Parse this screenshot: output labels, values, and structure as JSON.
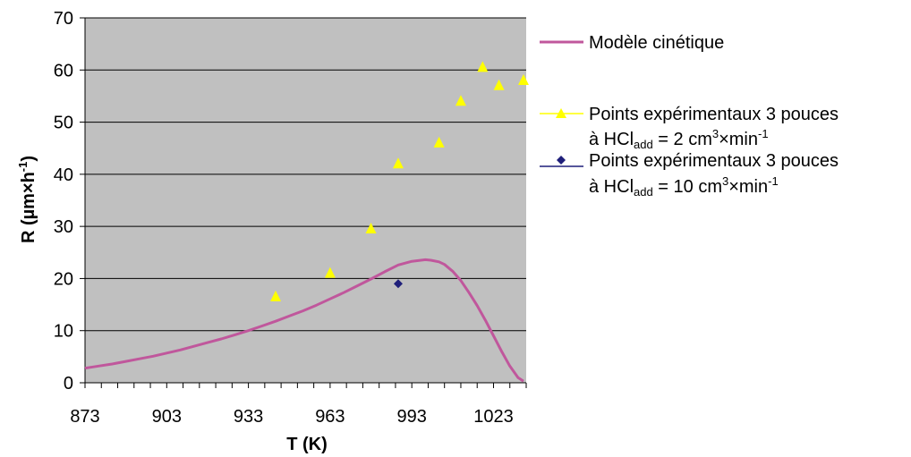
{
  "chart_data": {
    "type": "scatter",
    "xlabel": "T (K)",
    "ylabel": {
      "main": "R (µm×h",
      "sup": "-1",
      "end": ")"
    },
    "xlim": [
      873,
      1035
    ],
    "ylim": [
      0,
      70
    ],
    "xticks": [
      873,
      903,
      933,
      963,
      993,
      1023
    ],
    "yticks": [
      0,
      10,
      20,
      30,
      40,
      50,
      60,
      70
    ],
    "x_minor_step": 6,
    "grid": "horizontal",
    "plot_background": "#c0c0c0",
    "legend_position": "right",
    "series": [
      {
        "name": "Modèle cinétique",
        "kind": "line",
        "color": "#c0579c",
        "x": [
          873,
          878,
          883,
          888,
          893,
          898,
          903,
          908,
          913,
          918,
          923,
          928,
          933,
          938,
          943,
          948,
          953,
          958,
          963,
          968,
          973,
          978,
          983,
          988,
          993,
          998,
          1000,
          1003,
          1005,
          1008,
          1011,
          1014,
          1017,
          1020,
          1023,
          1026,
          1029,
          1032,
          1034
        ],
        "y": [
          2.8,
          3.2,
          3.6,
          4.1,
          4.6,
          5.1,
          5.7,
          6.3,
          7.0,
          7.7,
          8.4,
          9.2,
          10.0,
          10.9,
          11.8,
          12.8,
          13.8,
          14.9,
          16.1,
          17.3,
          18.6,
          19.9,
          21.3,
          22.6,
          23.3,
          23.6,
          23.5,
          23.2,
          22.7,
          21.4,
          19.6,
          17.3,
          14.8,
          12.0,
          9.0,
          6.0,
          3.2,
          1.0,
          0.3
        ]
      },
      {
        "name": {
          "line1": "Points expérimentaux 3 pouces",
          "prefix": "à HCl",
          "sub": "add",
          "middle": " = 2 cm",
          "sup1": "3",
          "times": "×min",
          "sup2": "-1"
        },
        "kind": "marker",
        "marker": "triangle",
        "color": "#ffff00",
        "x": [
          943,
          963,
          978,
          988,
          1003,
          1011,
          1019,
          1025,
          1034
        ],
        "y": [
          16.5,
          21,
          29.5,
          42,
          46,
          54,
          60.5,
          57,
          58
        ]
      },
      {
        "name": {
          "line1": "Points expérimentaux 3 pouces",
          "prefix": "à HCl",
          "sub": "add",
          "middle": " = 10 cm",
          "sup1": "3",
          "times": "×min",
          "sup2": "-1"
        },
        "kind": "marker",
        "marker": "diamond",
        "color": "#1f1f7a",
        "x": [
          988
        ],
        "y": [
          19
        ]
      }
    ]
  }
}
